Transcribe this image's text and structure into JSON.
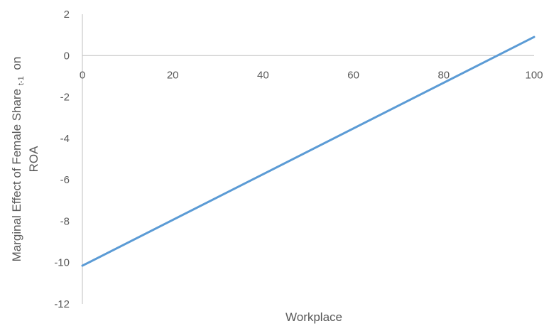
{
  "chart_data": {
    "type": "line",
    "xlabel": "Workplace",
    "ylabel_main": "Marginal Effect of Female Share",
    "ylabel_sub": "t-1",
    "ylabel_tail": "on",
    "ylabel_line2": "ROA",
    "xlim": [
      0,
      100
    ],
    "ylim": [
      -12,
      2
    ],
    "xticks": [
      0,
      20,
      40,
      60,
      80,
      100
    ],
    "yticks": [
      2,
      0,
      -2,
      -4,
      -6,
      -8,
      -10,
      -12
    ],
    "grid": false,
    "series": [
      {
        "color": "#5b9bd5",
        "x": [
          0,
          100
        ],
        "y": [
          -10.15,
          0.9
        ]
      }
    ]
  }
}
